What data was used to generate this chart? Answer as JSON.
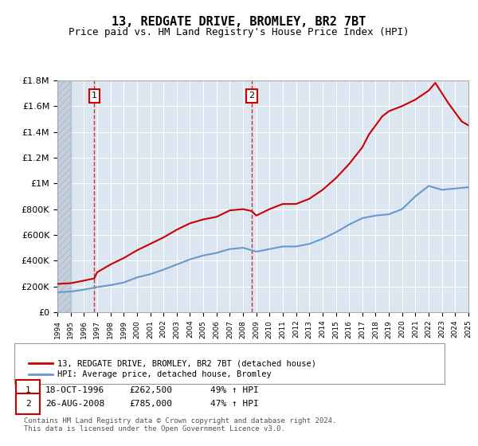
{
  "title": "13, REDGATE DRIVE, BROMLEY, BR2 7BT",
  "subtitle": "Price paid vs. HM Land Registry's House Price Index (HPI)",
  "title_fontsize": 11,
  "subtitle_fontsize": 9,
  "ylim": [
    0,
    1800000
  ],
  "yticks": [
    0,
    200000,
    400000,
    600000,
    800000,
    1000000,
    1200000,
    1400000,
    1600000,
    1800000
  ],
  "ytick_labels": [
    "£0",
    "£200K",
    "£400K",
    "£600K",
    "£800K",
    "£1M",
    "£1.2M",
    "£1.4M",
    "£1.6M",
    "£1.8M"
  ],
  "xmin_year": 1994,
  "xmax_year": 2025,
  "xticks": [
    1994,
    1995,
    1996,
    1997,
    1998,
    1999,
    2000,
    2001,
    2002,
    2003,
    2004,
    2005,
    2006,
    2007,
    2008,
    2009,
    2010,
    2011,
    2012,
    2013,
    2014,
    2015,
    2016,
    2017,
    2018,
    2019,
    2020,
    2021,
    2022,
    2023,
    2024,
    2025
  ],
  "sale1_x": 1996.79,
  "sale1_y": 262500,
  "sale1_label": "1",
  "sale1_date": "18-OCT-1996",
  "sale1_price": "£262,500",
  "sale1_hpi": "49% ↑ HPI",
  "sale2_x": 2008.65,
  "sale2_y": 785000,
  "sale2_label": "2",
  "sale2_date": "26-AUG-2008",
  "sale2_price": "£785,000",
  "sale2_hpi": "47% ↑ HPI",
  "red_color": "#cc0000",
  "blue_color": "#6699cc",
  "bg_color": "#dce6f1",
  "hatch_color": "#c0c8d8",
  "grid_color": "#ffffff",
  "legend_line1": "13, REDGATE DRIVE, BROMLEY, BR2 7BT (detached house)",
  "legend_line2": "HPI: Average price, detached house, Bromley",
  "footer": "Contains HM Land Registry data © Crown copyright and database right 2024.\nThis data is licensed under the Open Government Licence v3.0.",
  "hpi_years": [
    1994,
    1995,
    1996,
    1997,
    1998,
    1999,
    2000,
    2001,
    2002,
    2003,
    2004,
    2005,
    2006,
    2007,
    2008,
    2009,
    2010,
    2011,
    2012,
    2013,
    2014,
    2015,
    2016,
    2017,
    2018,
    2019,
    2020,
    2021,
    2022,
    2023,
    2024,
    2025
  ],
  "hpi_values": [
    155000,
    160000,
    175000,
    195000,
    210000,
    230000,
    270000,
    295000,
    330000,
    370000,
    410000,
    440000,
    460000,
    490000,
    500000,
    470000,
    490000,
    510000,
    510000,
    530000,
    570000,
    620000,
    680000,
    730000,
    750000,
    760000,
    800000,
    900000,
    980000,
    950000,
    960000,
    970000
  ],
  "red_years": [
    1994,
    1995,
    1996,
    1996.79,
    1997,
    1998,
    1999,
    2000,
    2001,
    2002,
    2003,
    2004,
    2005,
    2006,
    2007,
    2008,
    2008.65,
    2009,
    2010,
    2011,
    2012,
    2013,
    2014,
    2015,
    2016,
    2017,
    2017.5,
    2018,
    2018.5,
    2019,
    2020,
    2021,
    2022,
    2022.5,
    2023,
    2023.5,
    2024,
    2024.5,
    2025
  ],
  "red_values": [
    220000,
    225000,
    245000,
    262500,
    310000,
    370000,
    420000,
    480000,
    530000,
    580000,
    640000,
    690000,
    720000,
    740000,
    790000,
    800000,
    785000,
    750000,
    800000,
    840000,
    840000,
    880000,
    950000,
    1040000,
    1150000,
    1280000,
    1380000,
    1450000,
    1520000,
    1560000,
    1600000,
    1650000,
    1720000,
    1780000,
    1700000,
    1620000,
    1550000,
    1480000,
    1450000
  ]
}
